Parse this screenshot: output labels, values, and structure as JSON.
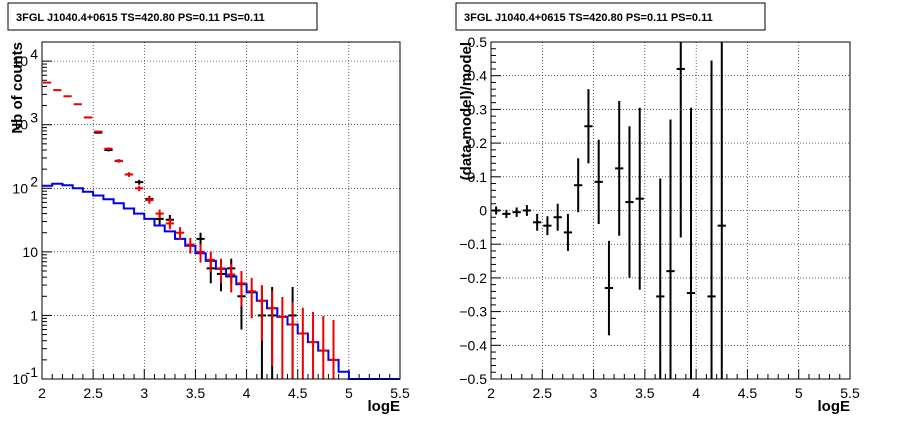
{
  "colors": {
    "data": "#000000",
    "model": "#0000ee",
    "sum": "#ee0000"
  },
  "chart_data": [
    {
      "type": "histogram-errorbars",
      "title": "3FGL J1040.4+0615 TS=420.80 PS=0.11 PS=0.11",
      "xlabel": "logE",
      "ylabel": "Nb of counts",
      "xlim": [
        2,
        5.5
      ],
      "ylim": [
        0.1,
        20000
      ],
      "yscale": "log",
      "grid": true,
      "xticks": [
        "2",
        "2.5",
        "3",
        "3.5",
        "4",
        "4.5",
        "5",
        "5.5"
      ],
      "yticks": [
        {
          "value": 0.1,
          "label": "10",
          "exp": "-1"
        },
        {
          "value": 1,
          "label": "1",
          "exp": ""
        },
        {
          "value": 10,
          "label": "10",
          "exp": ""
        },
        {
          "value": 100,
          "label": "10",
          "exp": "2"
        },
        {
          "value": 1000,
          "label": "10",
          "exp": "3"
        },
        {
          "value": 10000,
          "label": "10",
          "exp": "4"
        }
      ],
      "bin_width": 0.1,
      "series": [
        {
          "role": "data",
          "x": [
            2.05,
            2.15,
            2.25,
            2.35,
            2.45,
            2.55,
            2.65,
            2.75,
            2.85,
            2.95,
            3.05,
            3.15,
            3.25,
            3.35,
            3.45,
            3.55,
            3.65,
            3.75,
            3.85,
            3.95,
            4.05,
            4.15,
            4.25,
            4.35,
            4.45,
            4.55,
            4.65,
            4.75,
            4.85,
            4.95
          ],
          "y": [
            0,
            0,
            0,
            0,
            1300,
            750,
            400,
            270,
            165,
            125,
            68,
            33,
            32,
            0,
            0,
            16,
            5.5,
            4.5,
            5.5,
            2,
            0,
            1,
            1,
            0,
            1,
            0,
            0,
            0,
            0,
            0
          ],
          "err_low": [
            0,
            0,
            0,
            0,
            36,
            27,
            20,
            16,
            13,
            11,
            8,
            6,
            6,
            0,
            0,
            4,
            2.3,
            2.1,
            2.3,
            1.4,
            0,
            0.9,
            0.9,
            0,
            0.9,
            0,
            0,
            0,
            0,
            0
          ],
          "err_high": [
            0,
            0,
            0,
            0,
            36,
            27,
            20,
            16,
            13,
            11,
            8,
            6,
            6,
            0,
            0,
            4,
            2.3,
            2.1,
            2.3,
            1.4,
            0,
            1.8,
            1.8,
            0,
            1.8,
            0,
            0,
            0,
            0,
            0
          ]
        },
        {
          "role": "model",
          "x": [
            2.05,
            2.15,
            2.25,
            2.35,
            2.45,
            2.55,
            2.65,
            2.75,
            2.85,
            2.95,
            3.05,
            3.15,
            3.25,
            3.35,
            3.45,
            3.55,
            3.65,
            3.75,
            3.85,
            3.95,
            4.05,
            4.15,
            4.25,
            4.35,
            4.45,
            4.55,
            4.65,
            4.75,
            4.85,
            4.95,
            5.05,
            5.15,
            5.25,
            5.35,
            5.45
          ],
          "y": [
            110,
            118,
            112,
            100,
            88,
            77,
            67,
            58,
            48,
            40,
            33,
            26,
            21,
            16,
            12.5,
            9.5,
            7.2,
            5.4,
            4.1,
            3.1,
            2.3,
            1.7,
            1.3,
            0.95,
            0.72,
            0.52,
            0.38,
            0.28,
            0.2,
            0.13,
            0.1,
            0.1,
            0.1,
            0.1,
            0.1
          ]
        },
        {
          "role": "sum",
          "x": [
            2.05,
            2.15,
            2.25,
            2.35,
            2.45,
            2.55,
            2.65,
            2.75,
            2.85,
            2.95,
            3.05,
            3.15,
            3.25,
            3.35,
            3.45,
            3.55,
            3.65,
            3.75,
            3.85,
            3.95,
            4.05,
            4.15,
            4.25,
            4.35,
            4.45,
            4.55,
            4.65,
            4.75,
            4.85
          ],
          "y": [
            4600,
            3500,
            2800,
            2100,
            1300,
            780,
            420,
            270,
            165,
            100,
            65,
            40,
            28,
            20,
            13,
            10,
            7.5,
            5.5,
            4.4,
            3.2,
            2.4,
            1.7,
            1.3,
            0.95,
            0.72,
            0.52,
            0.38,
            0.28,
            0.2
          ],
          "err_low": [
            68,
            59,
            53,
            46,
            36,
            28,
            20,
            16,
            13,
            10,
            8,
            6.3,
            5.3,
            4.5,
            3.6,
            3.2,
            2.7,
            2.3,
            2.1,
            1.8,
            1.5,
            1.3,
            1.14,
            0.85,
            0.62,
            0.44,
            0.3,
            0.2,
            0.1
          ],
          "err_high": [
            68,
            59,
            53,
            46,
            36,
            28,
            20,
            16,
            13,
            10,
            8,
            6.3,
            5.3,
            4.5,
            3.6,
            3.2,
            2.7,
            2.3,
            2.1,
            1.8,
            1.5,
            1.3,
            1.14,
            1.0,
            0.9,
            0.8,
            0.75,
            0.7,
            0.65
          ]
        }
      ]
    },
    {
      "type": "scatter-errorbars",
      "title": "3FGL J1040.4+0615 TS=420.80 PS=0.11 PS=0.11",
      "xlabel": "logE",
      "ylabel": "(data-model)/model",
      "xlim": [
        2,
        5.5
      ],
      "ylim": [
        -0.5,
        0.5
      ],
      "grid": true,
      "xticks": [
        "2",
        "2.5",
        "3",
        "3.5",
        "4",
        "4.5",
        "5",
        "5.5"
      ],
      "yticks": [
        "−0.5",
        "−0.4",
        "−0.3",
        "−0.2",
        "−0.1",
        "0",
        "0.1",
        "0.2",
        "0.3",
        "0.4",
        "0.5"
      ],
      "bin_width": 0.1,
      "series": [
        {
          "role": "residuals",
          "x": [
            2.05,
            2.15,
            2.25,
            2.35,
            2.45,
            2.55,
            2.65,
            2.75,
            2.85,
            2.95,
            3.05,
            3.15,
            3.25,
            3.35,
            3.45,
            3.65,
            3.75,
            3.85,
            3.95,
            4.15,
            4.25
          ],
          "y": [
            0.0,
            -0.01,
            -0.005,
            0.0,
            -0.035,
            -0.045,
            -0.02,
            -0.065,
            0.075,
            0.25,
            0.085,
            -0.23,
            0.125,
            0.025,
            0.035,
            -0.255,
            -0.18,
            0.42,
            -0.245,
            -0.255,
            -0.045
          ],
          "err": [
            0.012,
            0.012,
            0.014,
            0.016,
            0.025,
            0.028,
            0.04,
            0.055,
            0.08,
            0.11,
            0.125,
            0.14,
            0.2,
            0.225,
            0.27,
            0.35,
            0.45,
            0.5,
            0.55,
            0.7,
            0.75
          ]
        }
      ]
    }
  ]
}
